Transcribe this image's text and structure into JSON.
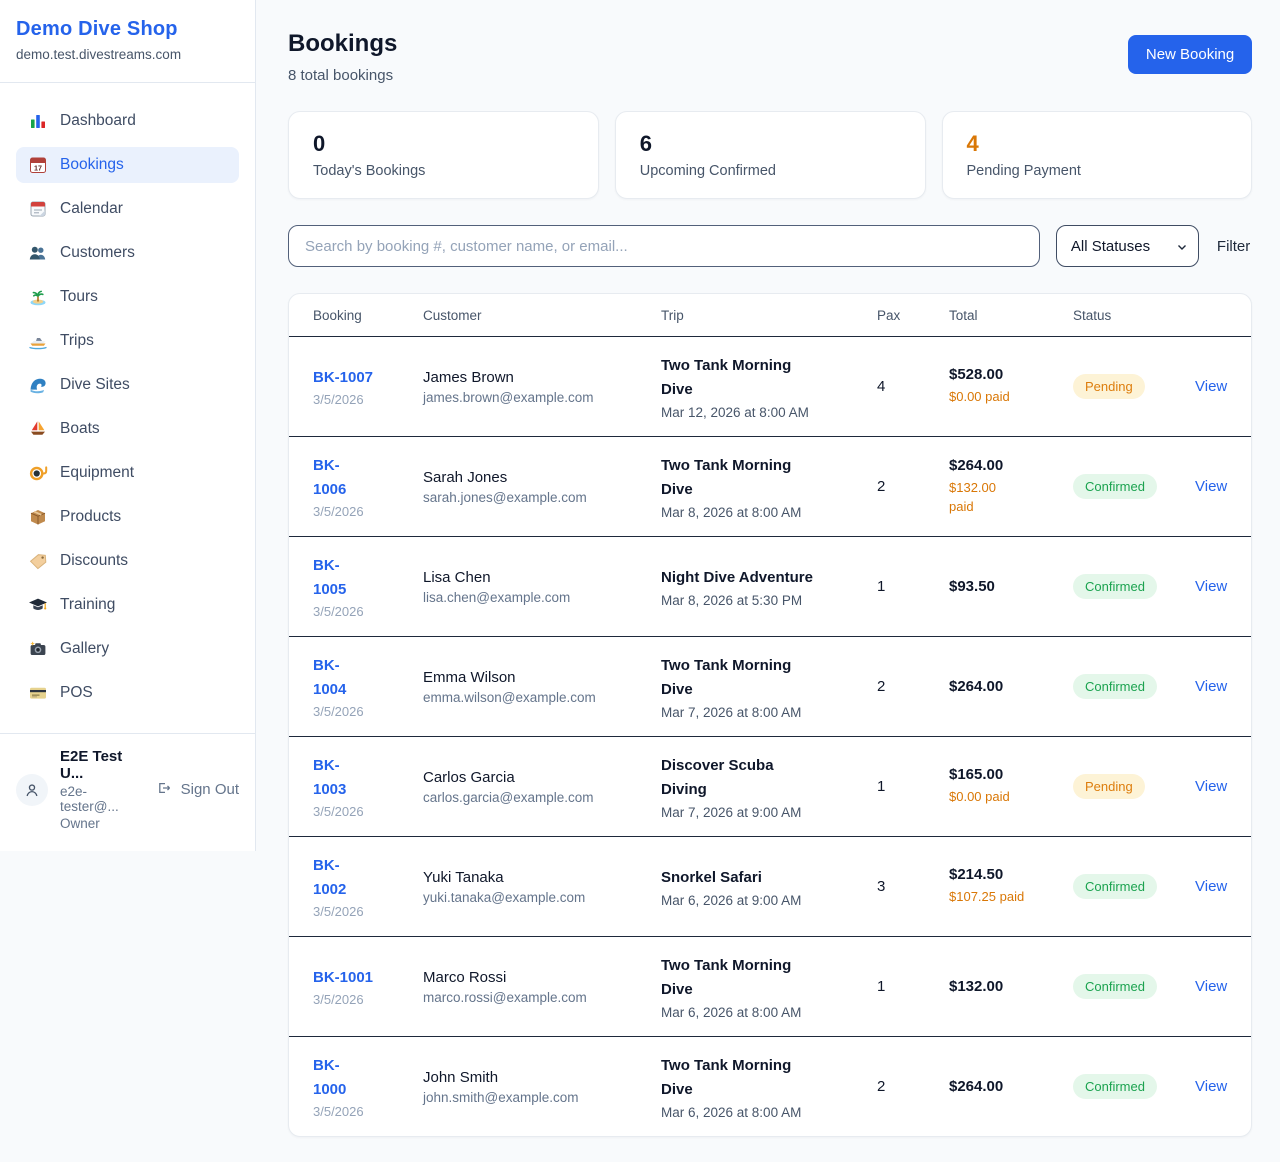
{
  "sidebar": {
    "brand": "Demo Dive Shop",
    "domain": "demo.test.divestreams.com",
    "nav": [
      {
        "label": "Dashboard",
        "icon": "bar-chart-icon"
      },
      {
        "label": "Bookings",
        "icon": "calendar-17-icon",
        "active": true
      },
      {
        "label": "Calendar",
        "icon": "tear-calendar-icon"
      },
      {
        "label": "Customers",
        "icon": "users-icon"
      },
      {
        "label": "Tours",
        "icon": "island-icon"
      },
      {
        "label": "Trips",
        "icon": "speedboat-icon"
      },
      {
        "label": "Dive Sites",
        "icon": "wave-icon"
      },
      {
        "label": "Boats",
        "icon": "sailboat-icon"
      },
      {
        "label": "Equipment",
        "icon": "diving-mask-icon"
      },
      {
        "label": "Products",
        "icon": "package-icon"
      },
      {
        "label": "Discounts",
        "icon": "tag-icon"
      },
      {
        "label": "Training",
        "icon": "graduation-cap-icon"
      },
      {
        "label": "Gallery",
        "icon": "camera-icon"
      },
      {
        "label": "POS",
        "icon": "credit-card-icon"
      }
    ],
    "user": {
      "name": "E2E Test U...",
      "email": "e2e-tester@...",
      "role": "Owner",
      "sign_out_label": "Sign Out"
    }
  },
  "header": {
    "title": "Bookings",
    "subtitle": "8 total bookings",
    "new_booking_label": "New Booking"
  },
  "stats": [
    {
      "value": "0",
      "label": "Today's Bookings",
      "accent": false
    },
    {
      "value": "6",
      "label": "Upcoming Confirmed",
      "accent": false
    },
    {
      "value": "4",
      "label": "Pending Payment",
      "accent": true
    }
  ],
  "filters": {
    "search_placeholder": "Search by booking #, customer name, or email...",
    "status_selected": "All Statuses",
    "filter_label": "Filter"
  },
  "table": {
    "columns": [
      "Booking",
      "Customer",
      "Trip",
      "Pax",
      "Total",
      "Status"
    ],
    "view_label": "View",
    "rows": [
      {
        "id": "BK-1007",
        "date": "3/5/2026",
        "customer": "James Brown",
        "email": "james.brown@example.com",
        "trip": "Two Tank Morning\nDive",
        "trip_time": "Mar 12, 2026 at 8:00 AM",
        "pax": "4",
        "total": "$528.00",
        "paid": "$0.00 paid",
        "status": "Pending",
        "status_type": "pending",
        "action": "View"
      },
      {
        "id": "BK-\n1006",
        "date": "3/5/2026",
        "customer": "Sarah Jones",
        "email": "sarah.jones@example.com",
        "trip": "Two Tank Morning\nDive",
        "trip_time": "Mar 8, 2026 at 8:00 AM",
        "pax": "2",
        "total": "$264.00",
        "paid": "$132.00\npaid",
        "status": "Confirmed",
        "status_type": "confirmed",
        "action": "View"
      },
      {
        "id": "BK-\n1005",
        "date": "3/5/2026",
        "customer": "Lisa Chen",
        "email": "lisa.chen@example.com",
        "trip": "Night Dive Adventure",
        "trip_time": "Mar 8, 2026 at 5:30 PM",
        "pax": "1",
        "total": "$93.50",
        "paid": "",
        "status": "Confirmed",
        "status_type": "confirmed",
        "action": "View"
      },
      {
        "id": "BK-\n1004",
        "date": "3/5/2026",
        "customer": "Emma Wilson",
        "email": "emma.wilson@example.com",
        "trip": "Two Tank Morning\nDive",
        "trip_time": "Mar 7, 2026 at 8:00 AM",
        "pax": "2",
        "total": "$264.00",
        "paid": "",
        "status": "Confirmed",
        "status_type": "confirmed",
        "action": "View"
      },
      {
        "id": "BK-\n1003",
        "date": "3/5/2026",
        "customer": "Carlos Garcia",
        "email": "carlos.garcia@example.com",
        "trip": "Discover Scuba\nDiving",
        "trip_time": "Mar 7, 2026 at 9:00 AM",
        "pax": "1",
        "total": "$165.00",
        "paid": "$0.00 paid",
        "status": "Pending",
        "status_type": "pending",
        "action": "View"
      },
      {
        "id": "BK-\n1002",
        "date": "3/5/2026",
        "customer": "Yuki Tanaka",
        "email": "yuki.tanaka@example.com",
        "trip": "Snorkel Safari",
        "trip_time": "Mar 6, 2026 at 9:00 AM",
        "pax": "3",
        "total": "$214.50",
        "paid": "$107.25 paid",
        "status": "Confirmed",
        "status_type": "confirmed",
        "action": "View"
      },
      {
        "id": "BK-1001",
        "date": "3/5/2026",
        "customer": "Marco Rossi",
        "email": "marco.rossi@example.com",
        "trip": "Two Tank Morning\nDive",
        "trip_time": "Mar 6, 2026 at 8:00 AM",
        "pax": "1",
        "total": "$132.00",
        "paid": "",
        "status": "Confirmed",
        "status_type": "confirmed",
        "action": "View"
      },
      {
        "id": "BK-\n1000",
        "date": "3/5/2026",
        "customer": "John Smith",
        "email": "john.smith@example.com",
        "trip": "Two Tank Morning\nDive",
        "trip_time": "Mar 6, 2026 at 8:00 AM",
        "pax": "2",
        "total": "$264.00",
        "paid": "",
        "status": "Confirmed",
        "status_type": "confirmed",
        "action": "View"
      }
    ]
  }
}
